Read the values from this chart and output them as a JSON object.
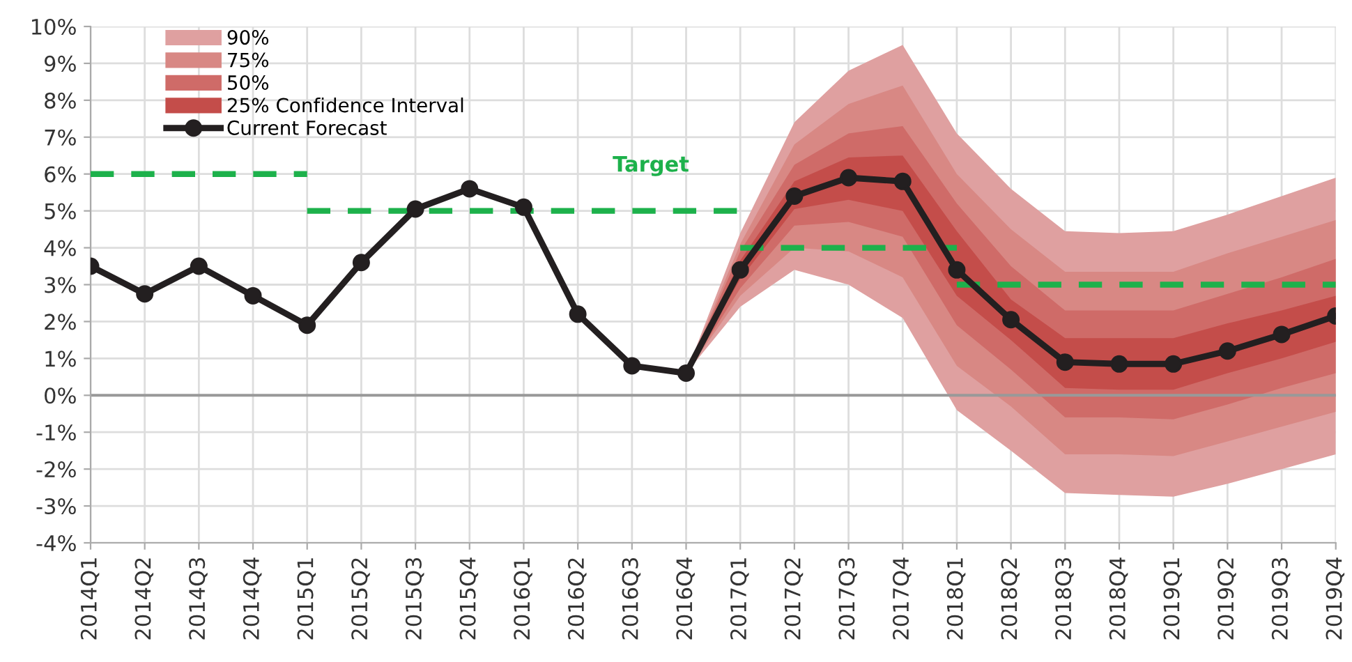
{
  "chart_data": {
    "type": "line",
    "categories": [
      "2014Q1",
      "2014Q2",
      "2014Q3",
      "2014Q4",
      "2015Q1",
      "2015Q2",
      "2015Q3",
      "2015Q4",
      "2016Q1",
      "2016Q2",
      "2016Q3",
      "2016Q4",
      "2017Q1",
      "2017Q2",
      "2017Q3",
      "2017Q4",
      "2018Q1",
      "2018Q2",
      "2018Q3",
      "2018Q4",
      "2019Q1",
      "2019Q2",
      "2019Q3",
      "2019Q4"
    ],
    "series": [
      {
        "name": "90%",
        "type": "area",
        "color": "#dfa0a0",
        "values": [
          null,
          null,
          null,
          null,
          null,
          null,
          null,
          null,
          null,
          null,
          null,
          null,
          null,
          null,
          null,
          null,
          null,
          null,
          null,
          null,
          null,
          null,
          null,
          null
        ],
        "lower": [
          null,
          null,
          null,
          null,
          null,
          null,
          null,
          null,
          null,
          null,
          null,
          0.6,
          2.4,
          3.4,
          3.0,
          2.1,
          -0.4,
          -1.5,
          -2.65,
          -2.7,
          -2.75,
          -2.4,
          -2.0,
          -1.6
        ],
        "upper": [
          null,
          null,
          null,
          null,
          null,
          null,
          null,
          null,
          null,
          null,
          null,
          0.6,
          4.4,
          7.4,
          8.8,
          9.5,
          7.1,
          5.6,
          4.45,
          4.4,
          4.45,
          4.9,
          5.4,
          5.9
        ]
      },
      {
        "name": "75%",
        "type": "area",
        "color": "#d88884",
        "values": [
          null,
          null,
          null,
          null,
          null,
          null,
          null,
          null,
          null,
          null,
          null,
          null,
          null,
          null,
          null,
          null,
          null,
          null,
          null,
          null,
          null,
          null,
          null,
          null
        ],
        "lower": [
          null,
          null,
          null,
          null,
          null,
          null,
          null,
          null,
          null,
          null,
          null,
          0.6,
          2.7,
          4.0,
          3.9,
          3.2,
          0.8,
          -0.3,
          -1.6,
          -1.6,
          -1.65,
          -1.25,
          -0.85,
          -0.45
        ],
        "upper": [
          null,
          null,
          null,
          null,
          null,
          null,
          null,
          null,
          null,
          null,
          null,
          0.6,
          4.1,
          6.8,
          7.9,
          8.4,
          6.0,
          4.5,
          3.35,
          3.35,
          3.35,
          3.85,
          4.3,
          4.75
        ]
      },
      {
        "name": "50%",
        "type": "area",
        "color": "#cf6b68",
        "values": [
          null,
          null,
          null,
          null,
          null,
          null,
          null,
          null,
          null,
          null,
          null,
          null,
          null,
          null,
          null,
          null,
          null,
          null,
          null,
          null,
          null,
          null,
          null,
          null
        ],
        "lower": [
          null,
          null,
          null,
          null,
          null,
          null,
          null,
          null,
          null,
          null,
          null,
          0.6,
          2.9,
          4.6,
          4.7,
          4.3,
          1.9,
          0.7,
          -0.6,
          -0.6,
          -0.65,
          -0.25,
          0.2,
          0.6
        ],
        "upper": [
          null,
          null,
          null,
          null,
          null,
          null,
          null,
          null,
          null,
          null,
          null,
          0.6,
          3.9,
          6.25,
          7.1,
          7.3,
          5.2,
          3.5,
          2.3,
          2.3,
          2.3,
          2.75,
          3.2,
          3.7
        ]
      },
      {
        "name": "25% Confidence Interval",
        "type": "area",
        "color": "#c44d4a",
        "values": [
          null,
          null,
          null,
          null,
          null,
          null,
          null,
          null,
          null,
          null,
          null,
          null,
          null,
          null,
          null,
          null,
          null,
          null,
          null,
          null,
          null,
          null,
          null,
          null
        ],
        "lower": [
          null,
          null,
          null,
          null,
          null,
          null,
          null,
          null,
          null,
          null,
          null,
          0.6,
          3.15,
          5.05,
          5.3,
          5.0,
          2.7,
          1.5,
          0.2,
          0.15,
          0.15,
          0.6,
          1.0,
          1.45
        ],
        "upper": [
          null,
          null,
          null,
          null,
          null,
          null,
          null,
          null,
          null,
          null,
          null,
          0.6,
          3.65,
          5.8,
          6.45,
          6.5,
          4.45,
          2.6,
          1.55,
          1.55,
          1.55,
          1.95,
          2.3,
          2.7
        ]
      },
      {
        "name": "Current Forecast",
        "color": "#231f20",
        "marker": "circle",
        "line_style": "solid",
        "values": [
          3.5,
          2.75,
          3.5,
          2.7,
          1.9,
          3.6,
          5.05,
          5.6,
          5.1,
          2.2,
          0.8,
          0.6,
          3.4,
          5.4,
          5.9,
          5.8,
          3.4,
          2.05,
          0.9,
          0.85,
          0.85,
          1.2,
          1.65,
          2.15
        ]
      },
      {
        "type": "line",
        "color": "#1db14b",
        "marker": "none",
        "line_style": "dashed",
        "values": [
          6,
          6,
          6,
          6,
          6,
          null,
          null,
          null,
          null,
          null,
          null,
          null,
          null,
          null,
          null,
          null,
          null,
          null,
          null,
          null,
          null,
          null,
          null,
          null
        ]
      },
      {
        "type": "line",
        "color": "#1db14b",
        "marker": "none",
        "line_style": "dashed",
        "values": [
          null,
          null,
          null,
          null,
          5,
          5,
          5,
          5,
          5,
          5,
          5,
          5,
          5,
          null,
          null,
          null,
          null,
          null,
          null,
          null,
          null,
          null,
          null,
          null
        ]
      },
      {
        "type": "line",
        "color": "#1db14b",
        "marker": "none",
        "line_style": "dashed",
        "values": [
          null,
          null,
          null,
          null,
          null,
          null,
          null,
          null,
          null,
          null,
          null,
          null,
          4,
          4,
          4,
          4,
          4,
          null,
          null,
          null,
          null,
          null,
          null,
          null
        ]
      },
      {
        "type": "line",
        "color": "#1db14b",
        "marker": "none",
        "line_style": "dashed",
        "values": [
          null,
          null,
          null,
          null,
          null,
          null,
          null,
          null,
          null,
          null,
          null,
          null,
          null,
          null,
          null,
          null,
          3,
          3,
          3,
          3,
          3,
          3,
          3,
          3
        ]
      }
    ],
    "annotations": [
      "Target"
    ],
    "ref_lines": [
      {
        "axis": "y",
        "value": 0,
        "color": "#999999"
      }
    ],
    "ylim": [
      -4,
      10
    ],
    "yticks": [
      {
        "value": -4,
        "label": "-4%"
      },
      {
        "value": -3,
        "label": "-3%"
      },
      {
        "value": -2,
        "label": "-2%"
      },
      {
        "value": -1,
        "label": "-1%"
      },
      {
        "value": 0,
        "label": "0%"
      },
      {
        "value": 1,
        "label": "1%"
      },
      {
        "value": 2,
        "label": "2%"
      },
      {
        "value": 3,
        "label": "3%"
      },
      {
        "value": 4,
        "label": "4%"
      },
      {
        "value": 5,
        "label": "5%"
      },
      {
        "value": 6,
        "label": "6%"
      },
      {
        "value": 7,
        "label": "7%"
      },
      {
        "value": 8,
        "label": "8%"
      },
      {
        "value": 9,
        "label": "9%"
      },
      {
        "value": 10,
        "label": "10%"
      }
    ],
    "grid": true,
    "legend": "top left"
  }
}
